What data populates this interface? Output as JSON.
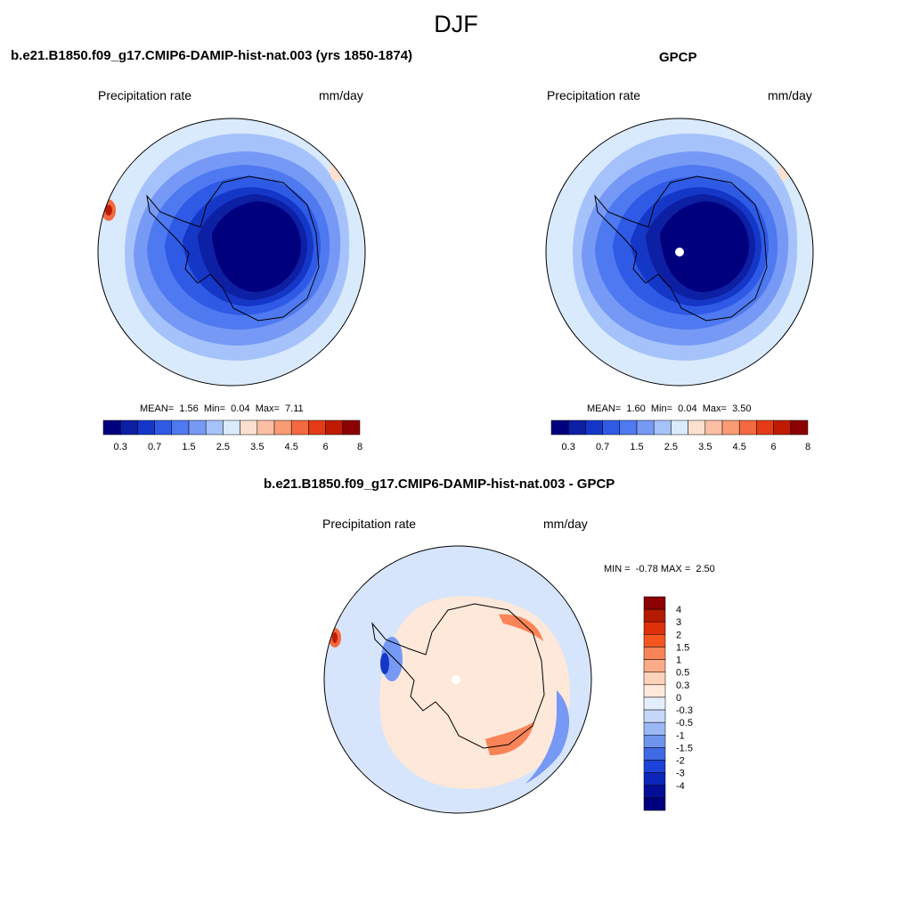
{
  "figure_title": "DJF",
  "panels": {
    "model": {
      "title": "b.e21.B1850.f09_g17.CMIP6-DAMIP-hist-nat.003 (yrs 1850-1874)",
      "field": "Precipitation rate",
      "units": "mm/day",
      "mean_label": "MEAN=",
      "mean": "1.56",
      "min_label": "Min=",
      "min": "0.04",
      "max_label": "Max=",
      "max": "7.11"
    },
    "obs": {
      "title": "GPCP",
      "field": "Precipitation rate",
      "units": "mm/day",
      "mean_label": "MEAN=",
      "mean": "1.60",
      "min_label": "Min=",
      "min": "0.04",
      "max_label": "Max=",
      "max": "3.50"
    },
    "diff": {
      "title": "b.e21.B1850.f09_g17.CMIP6-DAMIP-hist-nat.003 - GPCP",
      "field": "Precipitation rate",
      "units": "mm/day",
      "min_label": "MIN =",
      "min": "-0.78",
      "max_label": "MAX =",
      "max": "2.50"
    }
  },
  "colorbar_precip": {
    "colors": [
      "#00007f",
      "#0d1fa3",
      "#1437c8",
      "#2e5ae6",
      "#4f79f0",
      "#7699f5",
      "#a6c2fa",
      "#d9eafd",
      "#fde0cf",
      "#fcbfa3",
      "#f99b74",
      "#f46a40",
      "#e53b17",
      "#c01a05",
      "#8b0000"
    ],
    "tick_labels": [
      "0.3",
      "0.7",
      "1.5",
      "2.5",
      "3.5",
      "4.5",
      "6",
      "8"
    ]
  },
  "colorbar_diff": {
    "colors_top_to_bottom": [
      "#8b0000",
      "#b31a00",
      "#e0300a",
      "#f5561f",
      "#f88458",
      "#fbab88",
      "#fdd2bb",
      "#fde8d9",
      "#e4eefc",
      "#c5d8f9",
      "#9ab8f5",
      "#6e94ee",
      "#3f6ae6",
      "#1c43d9",
      "#0c26bb",
      "#050f96",
      "#00007f"
    ],
    "tick_labels": [
      "4",
      "3",
      "2",
      "1.5",
      "1",
      "0.5",
      "0.3",
      "0",
      "-0.3",
      "-0.5",
      "-1",
      "-1.5",
      "-2",
      "-3",
      "-4"
    ]
  }
}
